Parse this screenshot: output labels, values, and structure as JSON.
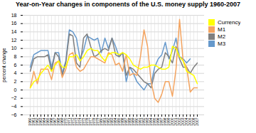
{
  "chart_data": {
    "type": "line",
    "title": "Year-on-Year changes in components of the U.S. money supply 1960-2007",
    "ylabel": "percent change",
    "categories": [
      "1960",
      "1961",
      "1962",
      "1963",
      "1964",
      "1965",
      "1966",
      "1967",
      "1968",
      "1969",
      "1970",
      "1971",
      "1972",
      "1973",
      "1974",
      "1975",
      "1976",
      "1977",
      "1978",
      "1979",
      "1980",
      "1981",
      "1982",
      "1983",
      "1984",
      "1985",
      "1986",
      "1987",
      "1988",
      "1989",
      "1990",
      "1991",
      "1992",
      "1993",
      "1994",
      "1995",
      "1996",
      "1997",
      "1998",
      "1999",
      "2000",
      "2001",
      "2002",
      "2003",
      "2004",
      "2005",
      "2006",
      "2007"
    ],
    "series": [
      {
        "name": "Currency",
        "color": "#ffff00",
        "values": [
          0.5,
          2.0,
          2.5,
          4.0,
          5.0,
          6.0,
          4.5,
          6.0,
          7.0,
          5.5,
          5.5,
          8.0,
          8.0,
          8.5,
          7.0,
          8.0,
          9.5,
          10.0,
          9.5,
          9.5,
          8.0,
          7.0,
          8.5,
          9.0,
          9.0,
          8.5,
          9.0,
          8.5,
          7.5,
          6.0,
          5.5,
          5.0,
          5.5,
          5.5,
          6.0,
          6.0,
          5.5,
          5.0,
          5.0,
          5.5,
          10.5,
          10.0,
          8.0,
          7.0,
          4.5,
          4.0,
          3.5,
          1.5
        ]
      },
      {
        "name": "M1",
        "color": "#f4a460",
        "values": [
          0.5,
          4.5,
          1.5,
          5.0,
          5.0,
          5.0,
          2.5,
          6.5,
          7.0,
          3.0,
          5.0,
          8.5,
          9.0,
          5.5,
          4.5,
          5.0,
          6.5,
          8.0,
          8.0,
          7.5,
          7.0,
          6.5,
          9.0,
          8.5,
          6.0,
          6.5,
          4.5,
          8.5,
          3.5,
          4.0,
          3.5,
          8.0,
          14.5,
          10.5,
          2.0,
          -2.0,
          -3.0,
          -1.0,
          2.0,
          2.0,
          -1.5,
          5.0,
          17.0,
          7.0,
          5.5,
          -0.5,
          0.5,
          0.5
        ]
      },
      {
        "name": "M2",
        "color": "#808080",
        "values": [
          4.5,
          7.5,
          8.0,
          8.0,
          8.0,
          8.5,
          4.5,
          9.0,
          8.0,
          3.5,
          6.5,
          13.5,
          13.0,
          6.5,
          5.5,
          12.5,
          13.5,
          10.5,
          8.0,
          8.5,
          9.5,
          10.0,
          9.5,
          12.5,
          8.5,
          8.0,
          9.0,
          3.5,
          5.5,
          5.0,
          4.0,
          3.0,
          2.0,
          1.5,
          0.5,
          4.0,
          5.0,
          5.5,
          9.0,
          8.0,
          6.5,
          10.5,
          7.5,
          5.5,
          5.5,
          4.0,
          5.5,
          6.5
        ]
      },
      {
        "name": "M3",
        "color": "#6699cc",
        "values": [
          5.5,
          8.5,
          9.0,
          9.5,
          9.5,
          9.5,
          5.5,
          9.0,
          9.0,
          4.0,
          7.0,
          14.5,
          14.0,
          12.5,
          7.5,
          9.5,
          13.0,
          12.5,
          12.0,
          12.5,
          9.0,
          12.5,
          10.0,
          12.5,
          10.5,
          8.0,
          9.0,
          2.0,
          5.5,
          4.0,
          2.0,
          1.0,
          0.0,
          1.5,
          1.5,
          5.5,
          7.5,
          8.5,
          11.5,
          7.5,
          9.5,
          12.5,
          8.0,
          7.5,
          6.5,
          7.5,
          null,
          null
        ]
      }
    ],
    "ylim": [
      -6,
      18
    ],
    "yticks": [
      -6,
      -4,
      -2,
      0,
      2,
      4,
      6,
      8,
      10,
      12,
      14,
      16,
      18
    ],
    "grid": true,
    "legend": "right"
  }
}
